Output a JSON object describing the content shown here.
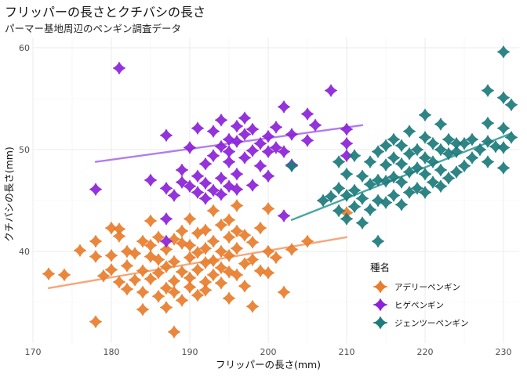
{
  "chart_data": {
    "type": "scatter",
    "title": "フリッパーの長さとクチバシの長さ",
    "subtitle": "パーマー基地周辺のペンギン調査データ",
    "xlabel": "フリッパーの長さ(mm)",
    "ylabel": "クチバシの長さ(mm)",
    "xlim": [
      170,
      232
    ],
    "ylim": [
      31,
      61
    ],
    "xticks": [
      170,
      180,
      190,
      200,
      210,
      220,
      230
    ],
    "yticks": [
      40,
      50,
      60
    ],
    "grid": true,
    "legend": {
      "title": "種名",
      "placement": "right-inside"
    },
    "series": [
      {
        "name": "アデリーペンギン",
        "color": "#E87D2B",
        "trend_color": "#F6A77A",
        "trend": {
          "x": [
            172,
            210
          ],
          "y": [
            36.4,
            41.4
          ]
        },
        "points": [
          [
            172,
            37.8
          ],
          [
            174,
            37.7
          ],
          [
            176,
            40.1
          ],
          [
            178,
            39.5
          ],
          [
            178,
            41.0
          ],
          [
            178,
            33.1
          ],
          [
            179,
            37.6
          ],
          [
            180,
            38.2
          ],
          [
            180,
            39.6
          ],
          [
            180,
            42.3
          ],
          [
            181,
            37.0
          ],
          [
            181,
            41.5
          ],
          [
            181,
            42.2
          ],
          [
            182,
            36.3
          ],
          [
            182,
            38.6
          ],
          [
            182,
            40.0
          ],
          [
            183,
            37.2
          ],
          [
            183,
            39.8
          ],
          [
            184,
            36.0
          ],
          [
            184,
            38.1
          ],
          [
            184,
            41.0
          ],
          [
            184,
            34.3
          ],
          [
            185,
            37.3
          ],
          [
            185,
            39.5
          ],
          [
            185,
            40.6
          ],
          [
            185,
            43.0
          ],
          [
            186,
            35.6
          ],
          [
            186,
            37.9
          ],
          [
            186,
            39.2
          ],
          [
            186,
            41.4
          ],
          [
            187,
            36.4
          ],
          [
            187,
            38.5
          ],
          [
            187,
            40.2
          ],
          [
            187,
            34.5
          ],
          [
            188,
            37.1
          ],
          [
            188,
            39.0
          ],
          [
            188,
            41.2
          ],
          [
            188,
            36.0
          ],
          [
            188,
            32.1
          ],
          [
            189,
            38.0
          ],
          [
            189,
            40.8
          ],
          [
            189,
            42.0
          ],
          [
            189,
            35.2
          ],
          [
            190,
            37.4
          ],
          [
            190,
            39.4
          ],
          [
            190,
            40.6
          ],
          [
            190,
            36.5
          ],
          [
            190,
            43.2
          ],
          [
            191,
            38.2
          ],
          [
            191,
            39.9
          ],
          [
            191,
            41.8
          ],
          [
            191,
            35.7
          ],
          [
            192,
            37.0
          ],
          [
            192,
            38.9
          ],
          [
            192,
            40.3
          ],
          [
            192,
            42.1
          ],
          [
            192,
            36.2
          ],
          [
            193,
            39.1
          ],
          [
            193,
            41.0
          ],
          [
            193,
            37.7
          ],
          [
            193,
            44.0
          ],
          [
            194,
            38.4
          ],
          [
            194,
            40.0
          ],
          [
            194,
            42.6
          ],
          [
            194,
            36.9
          ],
          [
            195,
            38.0
          ],
          [
            195,
            39.6
          ],
          [
            195,
            41.4
          ],
          [
            195,
            43.1
          ],
          [
            195,
            35.4
          ],
          [
            196,
            37.7
          ],
          [
            196,
            40.3
          ],
          [
            196,
            42.0
          ],
          [
            196,
            44.5
          ],
          [
            197,
            38.8
          ],
          [
            197,
            41.6
          ],
          [
            197,
            36.6
          ],
          [
            198,
            39.2
          ],
          [
            198,
            40.9
          ],
          [
            198,
            34.6
          ],
          [
            199,
            38.1
          ],
          [
            199,
            42.3
          ],
          [
            200,
            37.9
          ],
          [
            200,
            40.0
          ],
          [
            200,
            44.2
          ],
          [
            201,
            39.4
          ],
          [
            202,
            36.0
          ],
          [
            203,
            40.2
          ],
          [
            205,
            41.0
          ],
          [
            210,
            43.8
          ]
        ]
      },
      {
        "name": "ヒゲペンギン",
        "color": "#8B21D8",
        "trend_color": "#B07CF0",
        "trend": {
          "x": [
            178,
            212
          ],
          "y": [
            48.8,
            52.4
          ]
        },
        "points": [
          [
            178,
            46.1
          ],
          [
            181,
            58.0
          ],
          [
            185,
            47.0
          ],
          [
            187,
            51.4
          ],
          [
            187,
            46.2
          ],
          [
            187,
            43.2
          ],
          [
            187,
            41.0
          ],
          [
            188,
            45.5
          ],
          [
            189,
            46.8
          ],
          [
            189,
            48.0
          ],
          [
            190,
            46.4
          ],
          [
            190,
            50.2
          ],
          [
            191,
            45.8
          ],
          [
            191,
            47.4
          ],
          [
            191,
            52.1
          ],
          [
            192,
            45.2
          ],
          [
            192,
            46.7
          ],
          [
            192,
            48.6
          ],
          [
            193,
            46.0
          ],
          [
            193,
            49.4
          ],
          [
            193,
            51.8
          ],
          [
            194,
            45.6
          ],
          [
            194,
            47.2
          ],
          [
            194,
            50.3
          ],
          [
            194,
            52.9
          ],
          [
            195,
            46.4
          ],
          [
            195,
            48.8
          ],
          [
            195,
            51.0
          ],
          [
            195,
            49.8
          ],
          [
            196,
            47.6
          ],
          [
            196,
            50.8
          ],
          [
            196,
            52.3
          ],
          [
            196,
            46.1
          ],
          [
            197,
            49.2
          ],
          [
            197,
            51.5
          ],
          [
            197,
            53.1
          ],
          [
            198,
            46.5
          ],
          [
            198,
            49.9
          ],
          [
            198,
            52.0
          ],
          [
            199,
            48.4
          ],
          [
            199,
            50.6
          ],
          [
            200,
            47.4
          ],
          [
            200,
            51.3
          ],
          [
            200,
            49.8
          ],
          [
            201,
            50.2
          ],
          [
            201,
            52.2
          ],
          [
            202,
            49.8
          ],
          [
            202,
            54.2
          ],
          [
            203,
            51.5
          ],
          [
            203,
            48.5
          ],
          [
            205,
            50.9
          ],
          [
            205,
            53.5
          ],
          [
            206,
            52.4
          ],
          [
            208,
            55.8
          ],
          [
            210,
            52.0
          ],
          [
            210,
            50.6
          ],
          [
            210,
            49.4
          ],
          [
            202,
            43.5
          ]
        ]
      },
      {
        "name": "ジェンツーペンギン",
        "color": "#1D7B7B",
        "trend_color": "#4BA6A1",
        "trend": {
          "x": [
            203,
            231
          ],
          "y": [
            43.1,
            51.6
          ]
        },
        "points": [
          [
            203,
            48.4
          ],
          [
            207,
            45.0
          ],
          [
            208,
            45.4
          ],
          [
            209,
            44.0
          ],
          [
            209,
            46.2
          ],
          [
            209,
            48.8
          ],
          [
            210,
            43.2
          ],
          [
            210,
            45.5
          ],
          [
            210,
            47.6
          ],
          [
            211,
            44.4
          ],
          [
            211,
            46.0
          ],
          [
            211,
            49.4
          ],
          [
            212,
            45.2
          ],
          [
            212,
            47.4
          ],
          [
            212,
            42.8
          ],
          [
            213,
            44.1
          ],
          [
            213,
            46.6
          ],
          [
            213,
            48.8
          ],
          [
            214,
            45.0
          ],
          [
            214,
            47.0
          ],
          [
            214,
            49.8
          ],
          [
            214,
            41.0
          ],
          [
            215,
            44.8
          ],
          [
            215,
            46.9
          ],
          [
            215,
            48.5
          ],
          [
            215,
            50.4
          ],
          [
            216,
            45.5
          ],
          [
            216,
            47.3
          ],
          [
            216,
            49.2
          ],
          [
            216,
            51.0
          ],
          [
            217,
            44.6
          ],
          [
            217,
            46.8
          ],
          [
            217,
            48.6
          ],
          [
            217,
            50.4
          ],
          [
            218,
            45.8
          ],
          [
            218,
            47.8
          ],
          [
            218,
            49.6
          ],
          [
            218,
            51.8
          ],
          [
            219,
            46.2
          ],
          [
            219,
            48.2
          ],
          [
            219,
            50.0
          ],
          [
            220,
            45.8
          ],
          [
            220,
            47.6
          ],
          [
            220,
            49.2
          ],
          [
            220,
            51.2
          ],
          [
            220,
            53.4
          ],
          [
            221,
            46.8
          ],
          [
            221,
            48.8
          ],
          [
            221,
            50.6
          ],
          [
            222,
            46.4
          ],
          [
            222,
            48.0
          ],
          [
            222,
            50.0
          ],
          [
            222,
            52.5
          ],
          [
            223,
            47.2
          ],
          [
            223,
            49.6
          ],
          [
            223,
            51.0
          ],
          [
            224,
            47.8
          ],
          [
            224,
            49.8
          ],
          [
            224,
            50.6
          ],
          [
            225,
            48.4
          ],
          [
            225,
            50.6
          ],
          [
            226,
            49.2
          ],
          [
            226,
            51.0
          ],
          [
            227,
            50.0
          ],
          [
            228,
            48.8
          ],
          [
            228,
            50.8
          ],
          [
            228,
            52.6
          ],
          [
            228,
            55.8
          ],
          [
            229,
            50.3
          ],
          [
            230,
            48.2
          ],
          [
            230,
            50.2
          ],
          [
            230,
            52.1
          ],
          [
            230,
            55.1
          ],
          [
            230,
            59.6
          ],
          [
            231,
            51.2
          ],
          [
            231,
            54.4
          ]
        ]
      }
    ]
  }
}
